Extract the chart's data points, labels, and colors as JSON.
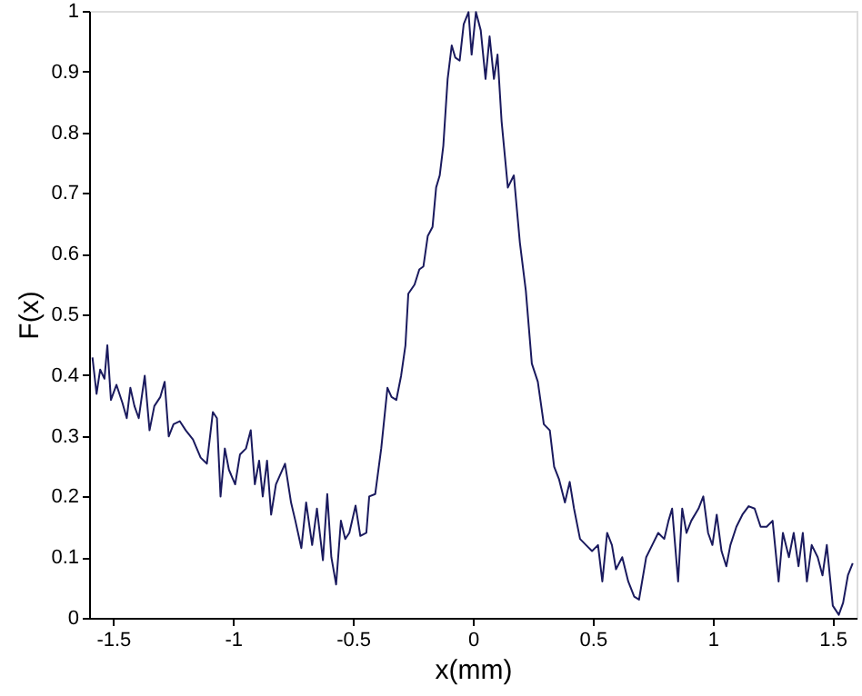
{
  "chart_data": {
    "type": "line",
    "xlabel": "x(mm)",
    "ylabel": "F(x)",
    "xlim": [
      -1.6,
      1.6
    ],
    "ylim": [
      0,
      1
    ],
    "xticks": [
      -1.5,
      -1,
      -0.5,
      0,
      0.5,
      1,
      1.5
    ],
    "yticks": [
      0,
      0.1,
      0.2,
      0.3,
      0.4,
      0.5,
      0.6,
      0.7,
      0.8,
      0.9,
      1
    ],
    "grid": false,
    "marker": "none",
    "line_style": "solid",
    "series": [
      {
        "color": "#1a1a5e",
        "x": [
          -1.586,
          -1.569,
          -1.554,
          -1.536,
          -1.524,
          -1.509,
          -1.486,
          -1.461,
          -1.443,
          -1.428,
          -1.411,
          -1.393,
          -1.368,
          -1.348,
          -1.328,
          -1.303,
          -1.285,
          -1.268,
          -1.248,
          -1.222,
          -1.197,
          -1.167,
          -1.135,
          -1.109,
          -1.084,
          -1.067,
          -1.052,
          -1.034,
          -1.017,
          -0.991,
          -0.971,
          -0.946,
          -0.926,
          -0.909,
          -0.891,
          -0.876,
          -0.858,
          -0.841,
          -0.821,
          -0.783,
          -0.758,
          -0.74,
          -0.715,
          -0.695,
          -0.67,
          -0.65,
          -0.625,
          -0.607,
          -0.59,
          -0.57,
          -0.55,
          -0.532,
          -0.515,
          -0.489,
          -0.469,
          -0.444,
          -0.432,
          -0.407,
          -0.382,
          -0.356,
          -0.339,
          -0.319,
          -0.299,
          -0.281,
          -0.269,
          -0.243,
          -0.223,
          -0.206,
          -0.188,
          -0.168,
          -0.153,
          -0.138,
          -0.123,
          -0.105,
          -0.088,
          -0.073,
          -0.055,
          -0.038,
          -0.018,
          -0.005,
          0.013,
          0.033,
          0.053,
          0.07,
          0.088,
          0.103,
          0.12,
          0.146,
          0.171,
          0.196,
          0.221,
          0.246,
          0.271,
          0.296,
          0.321,
          0.339,
          0.359,
          0.384,
          0.404,
          0.422,
          0.447,
          0.472,
          0.497,
          0.522,
          0.54,
          0.56,
          0.58,
          0.597,
          0.623,
          0.648,
          0.673,
          0.693,
          0.723,
          0.748,
          0.773,
          0.798,
          0.816,
          0.831,
          0.856,
          0.873,
          0.891,
          0.911,
          0.941,
          0.961,
          0.981,
          0.999,
          1.017,
          1.037,
          1.057,
          1.074,
          1.099,
          1.124,
          1.15,
          1.175,
          1.2,
          1.225,
          1.25,
          1.275,
          1.293,
          1.318,
          1.338,
          1.358,
          1.376,
          1.393,
          1.413,
          1.438,
          1.458,
          1.476,
          1.501,
          1.526,
          1.544,
          1.564,
          1.584
        ],
        "values": [
          0.429,
          0.369,
          0.409,
          0.394,
          0.449,
          0.359,
          0.384,
          0.354,
          0.329,
          0.379,
          0.349,
          0.329,
          0.399,
          0.309,
          0.349,
          0.364,
          0.389,
          0.299,
          0.319,
          0.324,
          0.309,
          0.294,
          0.264,
          0.254,
          0.339,
          0.329,
          0.2,
          0.279,
          0.244,
          0.22,
          0.269,
          0.279,
          0.309,
          0.22,
          0.259,
          0.2,
          0.259,
          0.17,
          0.22,
          0.254,
          0.19,
          0.16,
          0.115,
          0.19,
          0.12,
          0.18,
          0.095,
          0.204,
          0.1,
          0.055,
          0.16,
          0.13,
          0.14,
          0.185,
          0.135,
          0.14,
          0.2,
          0.204,
          0.279,
          0.379,
          0.364,
          0.359,
          0.399,
          0.449,
          0.534,
          0.549,
          0.574,
          0.579,
          0.629,
          0.644,
          0.709,
          0.729,
          0.778,
          0.888,
          0.943,
          0.923,
          0.918,
          0.978,
          0.998,
          0.928,
          0.998,
          0.968,
          0.888,
          0.958,
          0.888,
          0.928,
          0.818,
          0.709,
          0.729,
          0.619,
          0.539,
          0.419,
          0.389,
          0.319,
          0.309,
          0.249,
          0.229,
          0.19,
          0.224,
          0.18,
          0.13,
          0.12,
          0.11,
          0.12,
          0.06,
          0.14,
          0.12,
          0.08,
          0.1,
          0.06,
          0.035,
          0.03,
          0.1,
          0.12,
          0.14,
          0.13,
          0.16,
          0.18,
          0.06,
          0.18,
          0.14,
          0.16,
          0.18,
          0.2,
          0.14,
          0.12,
          0.17,
          0.11,
          0.085,
          0.12,
          0.15,
          0.17,
          0.184,
          0.18,
          0.15,
          0.15,
          0.16,
          0.06,
          0.14,
          0.1,
          0.14,
          0.085,
          0.14,
          0.06,
          0.12,
          0.1,
          0.07,
          0.12,
          0.02,
          0.005,
          0.025,
          0.07,
          0.09
        ]
      }
    ]
  }
}
